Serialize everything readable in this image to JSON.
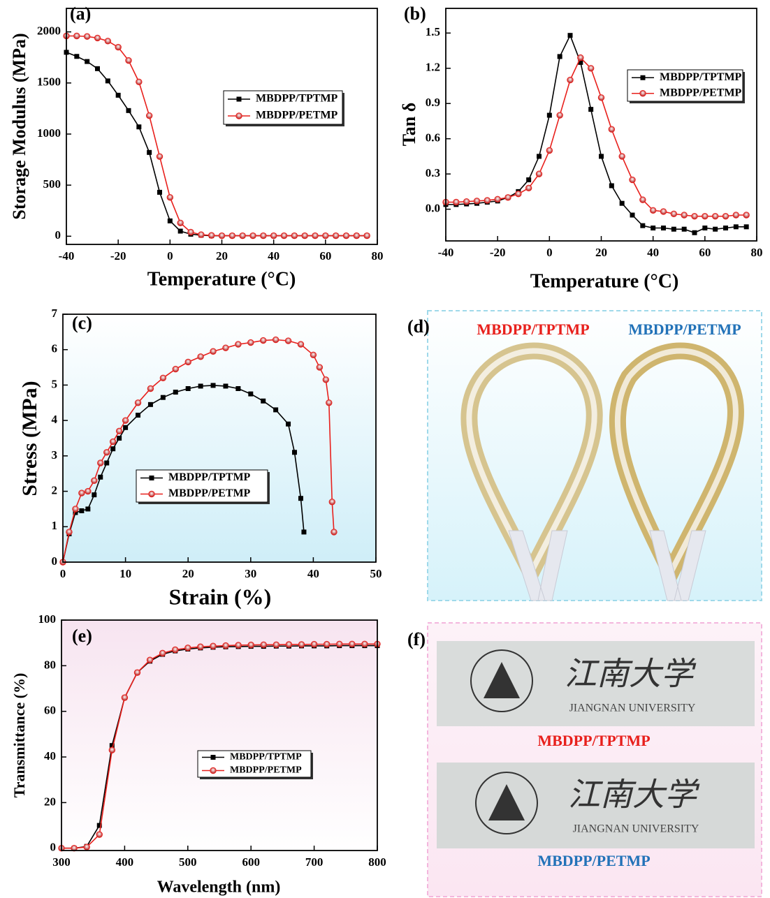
{
  "chart_data": [
    {
      "type": "line",
      "panel_label": "(a)",
      "x_label": "Temperature (°C)",
      "y_label": "Storage Modulus (MPa)",
      "xlim": [
        -40,
        80
      ],
      "ylim": [
        -80,
        2230
      ],
      "xticks": [
        -40,
        -20,
        0,
        20,
        40,
        60,
        80
      ],
      "yticks": [
        0,
        500,
        1000,
        1500,
        2000
      ],
      "legend": "center-right",
      "series": [
        {
          "name": "MBDPP/TPTMP",
          "color": "#000000",
          "marker": "square",
          "x": [
            -40,
            -36,
            -32,
            -28,
            -24,
            -20,
            -16,
            -12,
            -8,
            -4,
            0,
            4,
            8,
            12,
            16,
            20,
            24,
            28,
            32,
            36,
            40,
            44,
            48,
            52,
            56,
            60,
            64,
            68,
            72,
            76
          ],
          "values": [
            1800,
            1760,
            1710,
            1640,
            1520,
            1380,
            1230,
            1070,
            820,
            430,
            150,
            50,
            20,
            10,
            5,
            5,
            5,
            5,
            5,
            5,
            5,
            5,
            5,
            5,
            5,
            5,
            5,
            5,
            5,
            5
          ]
        },
        {
          "name": "MBDPP/PETMP",
          "color": "#e8201c",
          "marker": "circle",
          "x": [
            -40,
            -36,
            -32,
            -28,
            -24,
            -20,
            -16,
            -12,
            -8,
            -4,
            0,
            4,
            8,
            12,
            16,
            20,
            24,
            28,
            32,
            36,
            40,
            44,
            48,
            52,
            56,
            60,
            64,
            68,
            72,
            76
          ],
          "values": [
            1960,
            1960,
            1955,
            1940,
            1910,
            1850,
            1720,
            1510,
            1180,
            780,
            380,
            130,
            40,
            15,
            8,
            5,
            5,
            5,
            5,
            5,
            5,
            5,
            5,
            5,
            5,
            5,
            5,
            5,
            5,
            5
          ]
        }
      ]
    },
    {
      "type": "line",
      "panel_label": "(b)",
      "x_label": "Temperature (°C)",
      "y_label": "Tan δ",
      "xlim": [
        -40,
        80
      ],
      "ylim": [
        -0.27,
        1.71
      ],
      "xticks": [
        -40,
        -20,
        0,
        20,
        40,
        60,
        80
      ],
      "yticks": [
        {
          "value": 0,
          "label": "0.0"
        },
        0.3,
        0.6,
        0.9,
        1.2,
        1.5
      ],
      "legend": "upper-right",
      "series": [
        {
          "name": "MBDPP/TPTMP",
          "color": "#000000",
          "marker": "square",
          "x": [
            -40,
            -36,
            -32,
            -28,
            -24,
            -20,
            -16,
            -12,
            -8,
            -4,
            0,
            4,
            8,
            12,
            16,
            20,
            24,
            28,
            32,
            36,
            40,
            44,
            48,
            52,
            56,
            60,
            64,
            68,
            72,
            76
          ],
          "values": [
            0.04,
            0.04,
            0.045,
            0.05,
            0.06,
            0.07,
            0.1,
            0.15,
            0.25,
            0.45,
            0.8,
            1.3,
            1.48,
            1.25,
            0.85,
            0.45,
            0.2,
            0.05,
            -0.05,
            -0.14,
            -0.16,
            -0.16,
            -0.17,
            -0.17,
            -0.2,
            -0.16,
            -0.17,
            -0.16,
            -0.15,
            -0.15
          ]
        },
        {
          "name": "MBDPP/PETMP",
          "color": "#e8201c",
          "marker": "circle",
          "x": [
            -40,
            -36,
            -32,
            -28,
            -24,
            -20,
            -16,
            -12,
            -8,
            -4,
            0,
            4,
            8,
            12,
            16,
            20,
            24,
            28,
            32,
            36,
            40,
            44,
            48,
            52,
            56,
            60,
            64,
            68,
            72,
            76
          ],
          "values": [
            0.06,
            0.06,
            0.065,
            0.07,
            0.075,
            0.085,
            0.1,
            0.13,
            0.18,
            0.3,
            0.5,
            0.8,
            1.1,
            1.29,
            1.2,
            0.95,
            0.68,
            0.45,
            0.25,
            0.08,
            -0.01,
            -0.02,
            -0.04,
            -0.05,
            -0.06,
            -0.06,
            -0.06,
            -0.06,
            -0.05,
            -0.05
          ]
        }
      ]
    },
    {
      "type": "line",
      "panel_label": "(c)",
      "x_label": "Strain (%)",
      "y_label": "Stress (MPa)",
      "xlim": [
        0,
        50
      ],
      "ylim": [
        0,
        7
      ],
      "xticks": [
        0,
        10,
        20,
        30,
        40,
        50
      ],
      "yticks": [
        0,
        1,
        2,
        3,
        4,
        5,
        6,
        7
      ],
      "legend": "lower-center",
      "series": [
        {
          "name": "MBDPP/TPTMP",
          "color": "#000000",
          "marker": "square",
          "x": [
            0,
            1,
            2,
            3,
            4,
            5,
            6,
            7,
            8,
            9,
            10,
            12,
            14,
            16,
            18,
            20,
            22,
            24,
            26,
            28,
            30,
            32,
            34,
            36,
            37,
            38,
            38.5
          ],
          "values": [
            0,
            0.8,
            1.4,
            1.45,
            1.5,
            1.9,
            2.4,
            2.8,
            3.2,
            3.5,
            3.8,
            4.15,
            4.45,
            4.65,
            4.8,
            4.9,
            4.97,
            4.99,
            4.97,
            4.9,
            4.75,
            4.55,
            4.3,
            3.9,
            3.1,
            1.8,
            0.85
          ]
        },
        {
          "name": "MBDPP/PETMP",
          "color": "#e8201c",
          "marker": "circle",
          "x": [
            0,
            1,
            2,
            3,
            4,
            5,
            6,
            7,
            8,
            9,
            10,
            12,
            14,
            16,
            18,
            20,
            22,
            24,
            26,
            28,
            30,
            32,
            34,
            36,
            38,
            40,
            41,
            42,
            42.5,
            43,
            43.3
          ],
          "values": [
            0,
            0.85,
            1.5,
            1.95,
            2.0,
            2.3,
            2.8,
            3.1,
            3.4,
            3.7,
            4.0,
            4.5,
            4.9,
            5.2,
            5.45,
            5.65,
            5.8,
            5.95,
            6.05,
            6.15,
            6.2,
            6.26,
            6.28,
            6.25,
            6.15,
            5.85,
            5.5,
            5.15,
            4.5,
            1.7,
            0.85
          ]
        }
      ]
    },
    {
      "type": "line",
      "panel_label": "(e)",
      "x_label": "Wavelength (nm)",
      "y_label": "Transmittance (%)",
      "xlim": [
        300,
        800
      ],
      "ylim": [
        -1,
        100
      ],
      "xticks": [
        300,
        400,
        500,
        600,
        700,
        800
      ],
      "yticks": [
        0,
        20,
        40,
        60,
        80,
        100
      ],
      "legend": "center-right",
      "series": [
        {
          "name": "MBDPP/TPTMP",
          "color": "#000000",
          "marker": "square",
          "x": [
            300,
            320,
            340,
            360,
            380,
            400,
            420,
            440,
            460,
            480,
            500,
            520,
            540,
            560,
            580,
            600,
            620,
            640,
            660,
            680,
            700,
            720,
            740,
            760,
            780,
            800
          ],
          "values": [
            0,
            0,
            0.8,
            10,
            45,
            66,
            77,
            82,
            85,
            86.5,
            87.3,
            87.8,
            88.1,
            88.3,
            88.4,
            88.5,
            88.5,
            88.6,
            88.6,
            88.7,
            88.7,
            88.7,
            88.8,
            88.8,
            88.8,
            88.8
          ]
        },
        {
          "name": "MBDPP/PETMP",
          "color": "#e8201c",
          "marker": "circle",
          "x": [
            300,
            320,
            340,
            360,
            380,
            400,
            420,
            440,
            460,
            480,
            500,
            520,
            540,
            560,
            580,
            600,
            620,
            640,
            660,
            680,
            700,
            720,
            740,
            760,
            780,
            800
          ],
          "values": [
            0,
            0,
            0.5,
            6,
            43,
            66,
            77,
            82.5,
            85.5,
            87,
            87.8,
            88.3,
            88.6,
            88.8,
            89,
            89.1,
            89.2,
            89.2,
            89.3,
            89.3,
            89.4,
            89.4,
            89.5,
            89.5,
            89.5,
            89.5
          ]
        }
      ]
    }
  ],
  "photos": [
    {
      "label": "(d)",
      "captions": [
        "MBDPP/TPTMP",
        "MBDPP/PETMP"
      ]
    },
    {
      "label": "(f)",
      "captions": [
        "MBDPP/TPTMP",
        "MBDPP/PETMP"
      ],
      "chinese": "江南大学",
      "sign_text": "JIANGNAN UNIVERSITY"
    }
  ]
}
